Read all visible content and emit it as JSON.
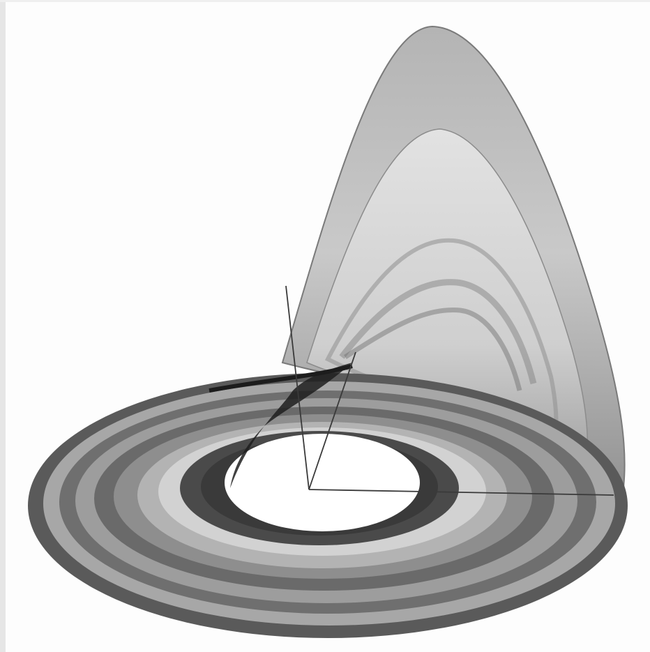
{
  "figure": {
    "subject": "rossler-attractor",
    "colors": {
      "background": "#fdfdfd",
      "ink_dark": "#1a1a1a",
      "ink_mid": "#6e6e6e",
      "ink_light": "#bdbdbd",
      "axis_line": "#3a3a3a"
    },
    "axes_count": 3
  }
}
